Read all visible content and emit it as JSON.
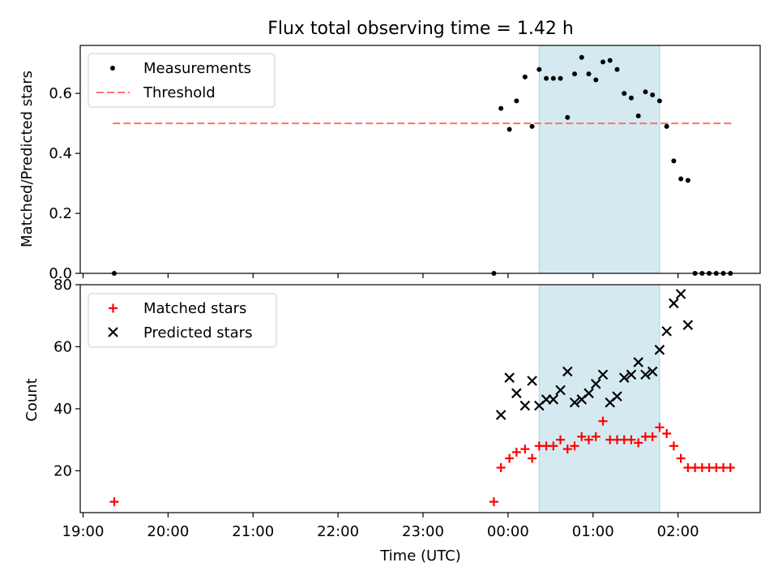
{
  "chart_data": [
    {
      "type": "scatter",
      "title": "Flux total observing time = 1.42 h",
      "xlabel": "",
      "ylabel": "Matched/Predicted stars",
      "xlim": [
        "18:58",
        "02:58"
      ],
      "ylim": [
        0,
        0.76
      ],
      "yticks": [
        "0.0",
        "0.2",
        "0.4",
        "0.6"
      ],
      "ytick_values": [
        0,
        0.2,
        0.4,
        0.6
      ],
      "xtick_labels_shown": false,
      "legend": {
        "position": "upper-left",
        "entries": [
          "Measurements",
          "Threshold"
        ]
      },
      "highlight_band": {
        "x_start": "00:22",
        "x_end": "01:47",
        "color": "#d4eaf0"
      },
      "threshold": {
        "name": "Threshold",
        "y": 0.5,
        "x_start": "19:21",
        "x_end": "02:38",
        "color": "#ff7070",
        "style": "dashed"
      },
      "series": [
        {
          "name": "Measurements",
          "marker": "dot",
          "color": "#000000",
          "x": [
            "19:22",
            "23:50",
            "23:55",
            "00:01",
            "00:06",
            "00:12",
            "00:17",
            "00:22",
            "00:27",
            "00:32",
            "00:37",
            "00:42",
            "00:47",
            "00:52",
            "00:57",
            "01:02",
            "01:07",
            "01:12",
            "01:17",
            "01:22",
            "01:27",
            "01:32",
            "01:37",
            "01:42",
            "01:47",
            "01:52",
            "01:57",
            "02:02",
            "02:07",
            "02:12",
            "02:17",
            "02:22",
            "02:27",
            "02:32",
            "02:37"
          ],
          "y": [
            0.0,
            0.0,
            0.55,
            0.48,
            0.575,
            0.655,
            0.49,
            0.68,
            0.65,
            0.65,
            0.65,
            0.52,
            0.665,
            0.72,
            0.665,
            0.645,
            0.705,
            0.71,
            0.68,
            0.6,
            0.585,
            0.525,
            0.605,
            0.595,
            0.575,
            0.49,
            0.375,
            0.315,
            0.31,
            0.0,
            0.0,
            0.0,
            0.0,
            0.0,
            0.0
          ]
        }
      ]
    },
    {
      "type": "scatter",
      "title": "",
      "xlabel": "Time (UTC)",
      "ylabel": "Count",
      "xlim": [
        "18:58",
        "02:58"
      ],
      "ylim": [
        6.5,
        80
      ],
      "yticks": [
        "20",
        "40",
        "60",
        "80"
      ],
      "ytick_values": [
        20,
        40,
        60,
        80
      ],
      "xticks": [
        "19:00",
        "20:00",
        "21:00",
        "22:00",
        "23:00",
        "00:00",
        "01:00",
        "02:00"
      ],
      "legend": {
        "position": "upper-left",
        "entries": [
          "Matched stars",
          "Predicted stars"
        ]
      },
      "highlight_band": {
        "x_start": "00:22",
        "x_end": "01:47",
        "color": "#d4eaf0"
      },
      "series": [
        {
          "name": "Matched stars",
          "marker": "plus",
          "color": "#ff0000",
          "x": [
            "19:22",
            "23:50",
            "23:55",
            "00:01",
            "00:06",
            "00:12",
            "00:17",
            "00:22",
            "00:27",
            "00:32",
            "00:37",
            "00:42",
            "00:47",
            "00:52",
            "00:57",
            "01:02",
            "01:07",
            "01:12",
            "01:17",
            "01:22",
            "01:27",
            "01:32",
            "01:37",
            "01:42",
            "01:47",
            "01:52",
            "01:57",
            "02:02",
            "02:07",
            "02:12",
            "02:17",
            "02:22",
            "02:27",
            "02:32",
            "02:37"
          ],
          "y": [
            10,
            10,
            21,
            24,
            26,
            27,
            24,
            28,
            28,
            28,
            30,
            27,
            28,
            31,
            30,
            31,
            36,
            30,
            30,
            30,
            30,
            29,
            31,
            31,
            34,
            32,
            28,
            24,
            21,
            21,
            21,
            21,
            21,
            21,
            21
          ]
        },
        {
          "name": "Predicted stars",
          "marker": "x",
          "color": "#000000",
          "x": [
            "23:55",
            "00:01",
            "00:06",
            "00:12",
            "00:17",
            "00:22",
            "00:27",
            "00:32",
            "00:37",
            "00:42",
            "00:47",
            "00:52",
            "00:57",
            "01:02",
            "01:07",
            "01:12",
            "01:17",
            "01:22",
            "01:27",
            "01:32",
            "01:37",
            "01:42",
            "01:47",
            "01:52",
            "01:57",
            "02:02",
            "02:07"
          ],
          "y": [
            38,
            50,
            45,
            41,
            49,
            41,
            43,
            43,
            46,
            52,
            42,
            43,
            45,
            48,
            51,
            42,
            44,
            50,
            51,
            55,
            51,
            52,
            59,
            65,
            74,
            77,
            67
          ]
        }
      ]
    }
  ]
}
